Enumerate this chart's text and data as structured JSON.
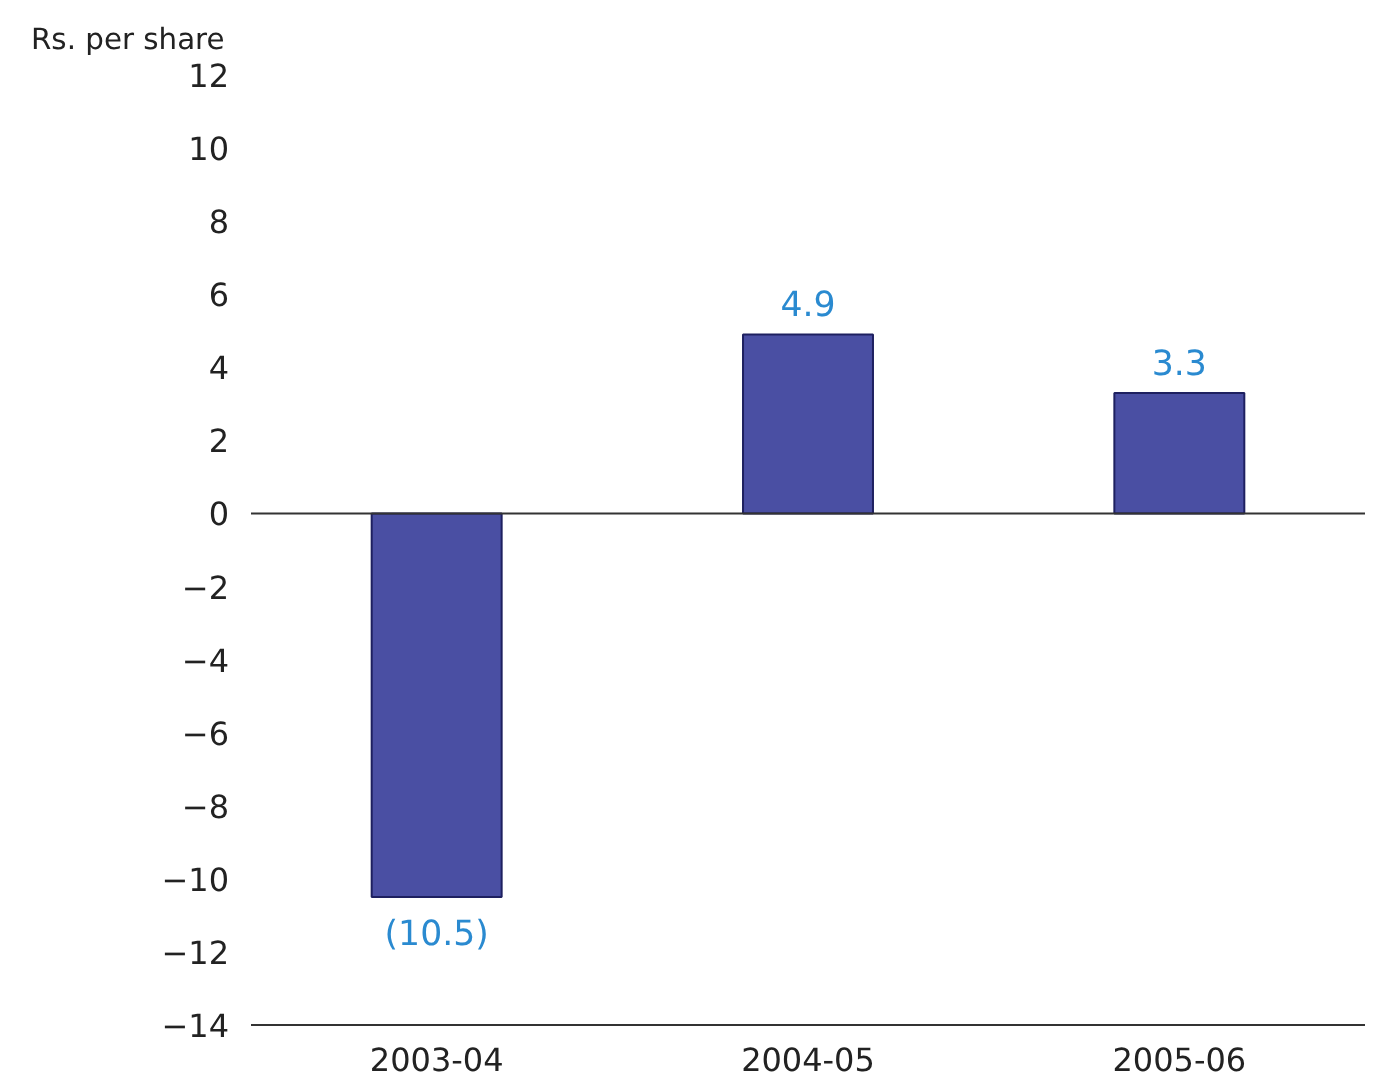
{
  "chart_data": {
    "type": "bar",
    "ylabel": "Rs. per share",
    "categories": [
      "2003-04",
      "2004-05",
      "2005-06"
    ],
    "values": [
      -10.5,
      4.9,
      3.3
    ],
    "value_labels": [
      "(10.5)",
      "4.9",
      "3.3"
    ],
    "color": "#4a4fa3",
    "ylim": [
      -14,
      12
    ],
    "yticks": [
      -14,
      -12,
      -10,
      -8,
      -6,
      -4,
      -2,
      0,
      2,
      4,
      6,
      8,
      10,
      12
    ]
  }
}
